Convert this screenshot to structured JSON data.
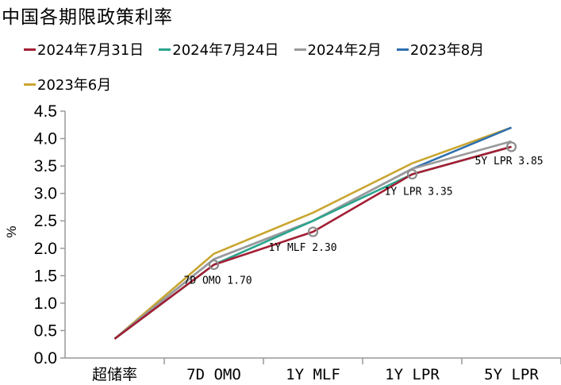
{
  "title": "中国各期限政策利率",
  "colors": {
    "series": [
      "#A31F34",
      "#2BA58E",
      "#9A9A9A",
      "#2D6FAE",
      "#C9A631"
    ],
    "axis": "#999999",
    "marker": "#8C8C8C"
  },
  "chart_data": {
    "type": "line",
    "title": "中国各期限政策利率",
    "xlabel": "",
    "ylabel": "%",
    "ylim": [
      0.0,
      4.5
    ],
    "yticks": [
      "0.0",
      "0.5",
      "1.0",
      "1.5",
      "2.0",
      "2.5",
      "3.0",
      "3.5",
      "4.0",
      "4.5"
    ],
    "categories": [
      "超储率",
      "7D OMO",
      "1Y MLF",
      "1Y LPR",
      "5Y LPR"
    ],
    "grid": false,
    "legend_position": "top",
    "series": [
      {
        "name": "2024年7月31日",
        "values": [
          0.35,
          1.7,
          2.3,
          3.35,
          3.85
        ]
      },
      {
        "name": "2024年7月24日",
        "values": [
          0.35,
          1.7,
          2.5,
          3.35,
          3.85
        ]
      },
      {
        "name": "2024年2月",
        "values": [
          0.35,
          1.8,
          2.5,
          3.45,
          3.95
        ]
      },
      {
        "name": "2023年8月",
        "values": [
          0.35,
          1.8,
          2.5,
          3.45,
          4.2
        ]
      },
      {
        "name": "2023年6月",
        "values": [
          0.35,
          1.9,
          2.65,
          3.55,
          4.2
        ]
      }
    ],
    "annotations": [
      {
        "category": "7D OMO",
        "text": "7D OMO 1.70",
        "value": 1.7
      },
      {
        "category": "1Y MLF",
        "text": "1Y MLF 2.30",
        "value": 2.3
      },
      {
        "category": "1Y LPR",
        "text": "1Y LPR 3.35",
        "value": 3.35
      },
      {
        "category": "5Y LPR",
        "text": "5Y LPR 3.85",
        "value": 3.85
      }
    ]
  }
}
